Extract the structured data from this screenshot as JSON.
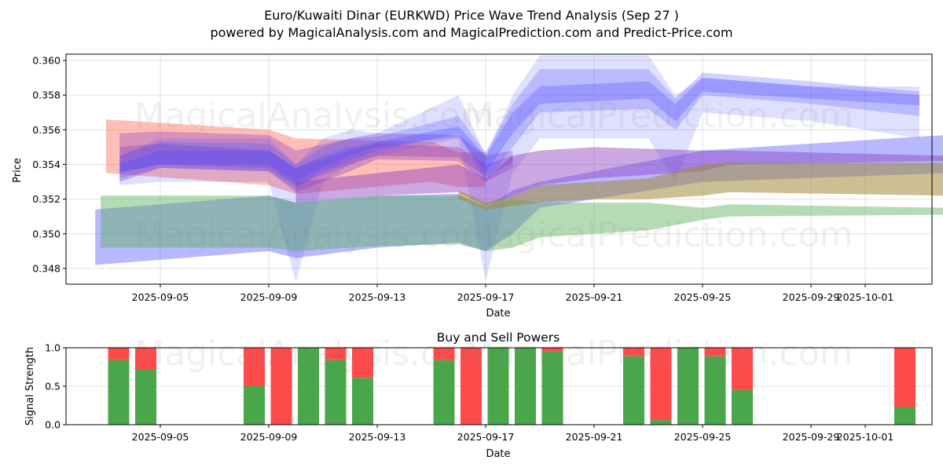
{
  "figure": {
    "title_line1": "Euro/Kuwaiti Dinar (EURKWD) Price Wave Trend Analysis (Sep 27 )",
    "title_line2": "powered by MagicalAnalysis.com and MagicalPrediction.com and Predict-Price.com",
    "watermarks": [
      "MagicalAnalysis.com",
      "MagicalPrediction.com"
    ]
  },
  "colors": {
    "red_band": "#ff6f61",
    "blue_band": "#4d4dff",
    "green_band": "#5aaf5a",
    "purple_band": "#8b3fbf",
    "buy": "#4aa64a",
    "sell": "#ff4a4a",
    "grid": "#e0e0e0"
  },
  "chart_data": [
    {
      "type": "area",
      "title": "",
      "xlabel": "Date",
      "ylabel": "Price",
      "ylim": [
        0.3471,
        0.3604
      ],
      "xlim": [
        "2025-09-01T12:00",
        "2025-10-04"
      ],
      "yticks": [
        "0.348",
        "0.350",
        "0.352",
        "0.354",
        "0.356",
        "0.358",
        "0.360"
      ],
      "ytick_values": [
        0.348,
        0.35,
        0.352,
        0.354,
        0.356,
        0.358,
        0.36
      ],
      "xticks": [
        "2025-09-05",
        "2025-09-09",
        "2025-09-13",
        "2025-09-17",
        "2025-09-21",
        "2025-09-25",
        "2025-09-29",
        "2025-10-01"
      ],
      "xtick_days": [
        4,
        8,
        12,
        16,
        20,
        24,
        28,
        30
      ],
      "grid": true,
      "series": [
        {
          "name": "red-band",
          "color": "red",
          "opacity": 0.45,
          "days": [
            2,
            8,
            9,
            14,
            15,
            16
          ],
          "upper": [
            0.3566,
            0.356,
            0.3555,
            0.3553,
            0.3547,
            0.3547
          ],
          "lower": [
            0.3535,
            0.3528,
            0.3523,
            0.353,
            0.3527,
            0.3527
          ]
        },
        {
          "name": "purple-band-1",
          "color": "purple",
          "opacity": 0.35,
          "days": [
            2.5,
            4,
            8,
            9,
            11,
            12,
            15,
            16,
            17
          ],
          "upper": [
            0.3558,
            0.3559,
            0.3557,
            0.3548,
            0.3555,
            0.3558,
            0.3557,
            0.3545,
            0.3548
          ],
          "lower": [
            0.353,
            0.3538,
            0.3536,
            0.3524,
            0.3536,
            0.3543,
            0.3542,
            0.353,
            0.3538
          ]
        },
        {
          "name": "purple-band-2",
          "color": "purple",
          "opacity": 0.35,
          "days": [
            2.5,
            4,
            8,
            9,
            11,
            12,
            15,
            16,
            17
          ],
          "upper": [
            0.355,
            0.3552,
            0.3548,
            0.3538,
            0.3548,
            0.3552,
            0.355,
            0.354,
            0.3545
          ],
          "lower": [
            0.3536,
            0.354,
            0.3538,
            0.3528,
            0.354,
            0.3545,
            0.3544,
            0.3533,
            0.3541
          ]
        },
        {
          "name": "blue-forecast-1",
          "color": "blue",
          "opacity": 0.18,
          "days": [
            2.5,
            4,
            8,
            9,
            10,
            11,
            12,
            15,
            16,
            17,
            18,
            22,
            23,
            24,
            28,
            32
          ],
          "upper": [
            0.3545,
            0.3555,
            0.3555,
            0.354,
            0.3555,
            0.356,
            0.3558,
            0.358,
            0.3545,
            0.358,
            0.3603,
            0.3603,
            0.358,
            0.359,
            0.3585,
            0.3585
          ],
          "lower": [
            0.3528,
            0.353,
            0.353,
            0.3472,
            0.353,
            0.354,
            0.3545,
            0.3555,
            0.3473,
            0.3535,
            0.3555,
            0.3555,
            0.353,
            0.357,
            0.3565,
            0.3555
          ]
        },
        {
          "name": "blue-forecast-2",
          "color": "blue",
          "opacity": 0.25,
          "days": [
            2.5,
            4,
            8,
            9,
            10,
            11,
            12,
            15,
            16,
            17,
            18,
            22,
            23,
            24,
            28,
            32
          ],
          "upper": [
            0.3545,
            0.3553,
            0.3552,
            0.354,
            0.355,
            0.3555,
            0.3556,
            0.3568,
            0.3547,
            0.3575,
            0.3595,
            0.3595,
            0.3578,
            0.3593,
            0.3588,
            0.3582
          ],
          "lower": [
            0.3532,
            0.3538,
            0.3536,
            0.3526,
            0.3536,
            0.3542,
            0.3548,
            0.3558,
            0.353,
            0.355,
            0.357,
            0.3572,
            0.356,
            0.358,
            0.3575,
            0.3568
          ]
        },
        {
          "name": "blue-forecast-3",
          "color": "blue",
          "opacity": 0.3,
          "days": [
            2.5,
            4,
            8,
            9,
            10,
            11,
            12,
            15,
            16,
            17,
            18,
            22,
            23,
            24,
            28,
            32
          ],
          "upper": [
            0.354,
            0.3548,
            0.3548,
            0.3538,
            0.3545,
            0.355,
            0.3553,
            0.3562,
            0.3545,
            0.357,
            0.3585,
            0.3588,
            0.3575,
            0.359,
            0.3585,
            0.358
          ],
          "lower": [
            0.3535,
            0.354,
            0.354,
            0.353,
            0.3538,
            0.3545,
            0.355,
            0.3556,
            0.3535,
            0.3558,
            0.3575,
            0.3578,
            0.3565,
            0.3582,
            0.3578,
            0.3574
          ]
        },
        {
          "name": "blue-lower-band",
          "color": "blue",
          "opacity": 0.4,
          "days": [
            1.6,
            8,
            9,
            12,
            15,
            16,
            17,
            18,
            24,
            33
          ],
          "upper": [
            0.3514,
            0.3522,
            0.3518,
            0.3522,
            0.3523,
            0.3515,
            0.3525,
            0.353,
            0.3548,
            0.3557
          ],
          "lower": [
            0.3482,
            0.349,
            0.3486,
            0.3492,
            0.3495,
            0.349,
            0.35,
            0.3515,
            0.353,
            0.3535
          ]
        },
        {
          "name": "green-band",
          "color": "green",
          "opacity": 0.45,
          "days": [
            1.8,
            8,
            9,
            12,
            15,
            16,
            17,
            18,
            22,
            24,
            25,
            33
          ],
          "upper": [
            0.3522,
            0.3522,
            0.3518,
            0.3522,
            0.3522,
            0.3516,
            0.352,
            0.3518,
            0.3518,
            0.3515,
            0.3517,
            0.3515
          ],
          "lower": [
            0.3492,
            0.3492,
            0.349,
            0.3493,
            0.3494,
            0.349,
            0.3492,
            0.3498,
            0.3502,
            0.3508,
            0.351,
            0.3511
          ]
        },
        {
          "name": "purple-mid-band",
          "color": "purple",
          "opacity": 0.45,
          "days": [
            9,
            12,
            15,
            16,
            17,
            18,
            20,
            24,
            25,
            33
          ],
          "upper": [
            0.353,
            0.3535,
            0.354,
            0.3532,
            0.3545,
            0.3548,
            0.355,
            0.3548,
            0.3548,
            0.3545
          ],
          "lower": [
            0.3518,
            0.3522,
            0.3524,
            0.3516,
            0.3522,
            0.3528,
            0.3532,
            0.3536,
            0.354,
            0.3542
          ]
        },
        {
          "name": "olive-band",
          "color": "olive",
          "opacity": 0.55,
          "days": [
            15,
            16,
            17,
            18,
            20,
            22,
            24,
            25,
            33
          ],
          "upper": [
            0.3525,
            0.3518,
            0.3522,
            0.3528,
            0.353,
            0.3532,
            0.354,
            0.3541,
            0.3541
          ],
          "lower": [
            0.352,
            0.3514,
            0.3516,
            0.3518,
            0.352,
            0.352,
            0.3522,
            0.3524,
            0.3522
          ]
        }
      ]
    },
    {
      "type": "bar",
      "title": "Buy and Sell Powers",
      "xlabel": "Date",
      "ylabel": "Signal Strength",
      "ylim": [
        0,
        1
      ],
      "yticks": [
        "0.0",
        "0.5",
        "1.0"
      ],
      "ytick_values": [
        0,
        0.5,
        1.0
      ],
      "xticks": [
        "2025-09-05",
        "2025-09-09",
        "2025-09-13",
        "2025-09-17",
        "2025-09-21",
        "2025-09-25",
        "2025-09-29",
        "2025-10-01"
      ],
      "xtick_days": [
        4,
        8,
        12,
        16,
        20,
        24,
        28,
        30
      ],
      "grid": true,
      "categories": [
        "2025-09-03",
        "2025-09-04",
        "2025-09-08",
        "2025-09-09",
        "2025-09-10",
        "2025-09-11",
        "2025-09-12",
        "2025-09-15",
        "2025-09-16",
        "2025-09-17",
        "2025-09-18",
        "2025-09-19",
        "2025-09-22",
        "2025-09-23",
        "2025-09-24",
        "2025-09-25",
        "2025-09-26",
        "2025-10-02"
      ],
      "days": [
        2,
        3,
        7,
        8,
        9,
        10,
        11,
        14,
        15,
        16,
        17,
        18,
        21,
        22,
        23,
        24,
        25,
        31
      ],
      "series": [
        {
          "name": "Buy",
          "color": "buy",
          "values": [
            0.84,
            0.72,
            0.5,
            0.0,
            1.0,
            0.84,
            0.61,
            0.84,
            0.0,
            1.0,
            1.0,
            0.95,
            0.89,
            0.06,
            1.0,
            0.89,
            0.45,
            0.23
          ]
        },
        {
          "name": "Sell",
          "color": "sell",
          "values": [
            0.16,
            0.28,
            0.5,
            1.0,
            0.0,
            0.16,
            0.39,
            0.16,
            1.0,
            0.0,
            0.0,
            0.05,
            0.11,
            0.94,
            0.0,
            0.11,
            0.55,
            0.77
          ]
        }
      ]
    }
  ]
}
